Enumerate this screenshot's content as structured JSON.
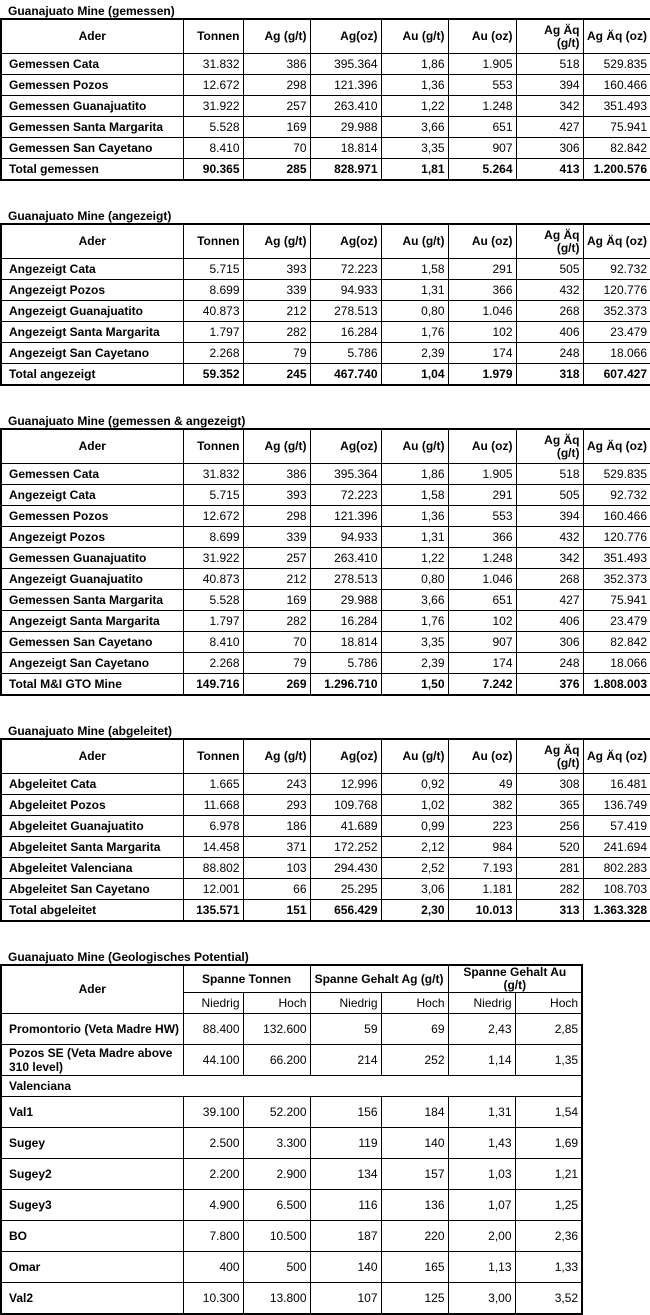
{
  "headers": [
    "Ader",
    "Tonnen",
    "Ag (g/t)",
    "Ag(oz)",
    "Au (g/t)",
    "Au (oz)",
    "Ag Äq (g/t)",
    "Ag Äq (oz)"
  ],
  "tables": [
    {
      "title": "Guanajuato Mine (gemessen)",
      "rows": [
        [
          "Gemessen Cata",
          "31.832",
          "386",
          "395.364",
          "1,86",
          "1.905",
          "518",
          "529.835"
        ],
        [
          "Gemessen Pozos",
          "12.672",
          "298",
          "121.396",
          "1,36",
          "553",
          "394",
          "160.466"
        ],
        [
          "Gemessen Guanajuatito",
          "31.922",
          "257",
          "263.410",
          "1,22",
          "1.248",
          "342",
          "351.493"
        ],
        [
          "Gemessen Santa Margarita",
          "5.528",
          "169",
          "29.988",
          "3,66",
          "651",
          "427",
          "75.941"
        ],
        [
          "Gemessen San Cayetano",
          "8.410",
          "70",
          "18.814",
          "3,35",
          "907",
          "306",
          "82.842"
        ]
      ],
      "total": [
        "Total gemessen",
        "90.365",
        "285",
        "828.971",
        "1,81",
        "5.264",
        "413",
        "1.200.576"
      ]
    },
    {
      "title": "Guanajuato Mine (angezeigt)",
      "rows": [
        [
          "Angezeigt Cata",
          "5.715",
          "393",
          "72.223",
          "1,58",
          "291",
          "505",
          "92.732"
        ],
        [
          "Angezeigt Pozos",
          "8.699",
          "339",
          "94.933",
          "1,31",
          "366",
          "432",
          "120.776"
        ],
        [
          "Angezeigt Guanajuatito",
          "40.873",
          "212",
          "278.513",
          "0,80",
          "1.046",
          "268",
          "352.373"
        ],
        [
          "Angezeigt Santa Margarita",
          "1.797",
          "282",
          "16.284",
          "1,76",
          "102",
          "406",
          "23.479"
        ],
        [
          "Angezeigt San Cayetano",
          "2.268",
          "79",
          "5.786",
          "2,39",
          "174",
          "248",
          "18.066"
        ]
      ],
      "total": [
        "Total angezeigt",
        "59.352",
        "245",
        "467.740",
        "1,04",
        "1.979",
        "318",
        "607.427"
      ]
    },
    {
      "title": "Guanajuato Mine (gemessen & angezeigt)",
      "rows": [
        [
          "Gemessen Cata",
          "31.832",
          "386",
          "395.364",
          "1,86",
          "1.905",
          "518",
          "529.835"
        ],
        [
          "Angezeigt Cata",
          "5.715",
          "393",
          "72.223",
          "1,58",
          "291",
          "505",
          "92.732"
        ],
        [
          "Gemessen Pozos",
          "12.672",
          "298",
          "121.396",
          "1,36",
          "553",
          "394",
          "160.466"
        ],
        [
          "Angezeigt Pozos",
          "8.699",
          "339",
          "94.933",
          "1,31",
          "366",
          "432",
          "120.776"
        ],
        [
          "Gemessen Guanajuatito",
          "31.922",
          "257",
          "263.410",
          "1,22",
          "1.248",
          "342",
          "351.493"
        ],
        [
          "Angezeigt Guanajuatito",
          "40.873",
          "212",
          "278.513",
          "0,80",
          "1.046",
          "268",
          "352.373"
        ],
        [
          "Gemessen Santa Margarita",
          "5.528",
          "169",
          "29.988",
          "3,66",
          "651",
          "427",
          "75.941"
        ],
        [
          "Angezeigt Santa Margarita",
          "1.797",
          "282",
          "16.284",
          "1,76",
          "102",
          "406",
          "23.479"
        ],
        [
          "Gemessen San Cayetano",
          "8.410",
          "70",
          "18.814",
          "3,35",
          "907",
          "306",
          "82.842"
        ],
        [
          "Angezeigt San Cayetano",
          "2.268",
          "79",
          "5.786",
          "2,39",
          "174",
          "248",
          "18.066"
        ]
      ],
      "total": [
        "Total M&I GTO Mine",
        "149.716",
        "269",
        "1.296.710",
        "1,50",
        "7.242",
        "376",
        "1.808.003"
      ]
    },
    {
      "title": "Guanajuato Mine (abgeleitet)",
      "rows": [
        [
          "Abgeleitet Cata",
          "1.665",
          "243",
          "12.996",
          "0,92",
          "49",
          "308",
          "16.481"
        ],
        [
          "Abgeleitet Pozos",
          "11.668",
          "293",
          "109.768",
          "1,02",
          "382",
          "365",
          "136.749"
        ],
        [
          "Abgeleitet Guanajuatito",
          "6.978",
          "186",
          "41.689",
          "0,99",
          "223",
          "256",
          "57.419"
        ],
        [
          "Abgeleitet Santa Margarita",
          "14.458",
          "371",
          "172.252",
          "2,12",
          "984",
          "520",
          "241.694"
        ],
        [
          "Abgeleitet Valenciana",
          "88.802",
          "103",
          "294.430",
          "2,52",
          "7.193",
          "281",
          "802.283"
        ],
        [
          "Abgeleitet San Cayetano",
          "12.001",
          "66",
          "25.295",
          "3,06",
          "1.181",
          "282",
          "108.703"
        ]
      ],
      "total": [
        "Total abgeleitet",
        "135.571",
        "151",
        "656.429",
        "2,30",
        "10.013",
        "313",
        "1.363.328"
      ]
    }
  ],
  "potential": {
    "title": "Guanajuato Mine (Geologisches Potential)",
    "header_ader": "Ader",
    "groups": [
      "Spanne Tonnen",
      "Spanne Gehalt Ag (g/t)",
      "Spanne Gehalt Au (g/t)"
    ],
    "low": "Niedrig",
    "high": "Hoch",
    "rows_top": [
      [
        "Promontorio (Veta Madre HW)",
        "88.400",
        "132.600",
        "59",
        "69",
        "2,43",
        "2,85"
      ],
      [
        "Pozos SE (Veta Madre above 310 level)",
        "44.100",
        "66.200",
        "214",
        "252",
        "1,14",
        "1,35"
      ]
    ],
    "group_label": "Valenciana",
    "rows": [
      [
        "Val1",
        "39.100",
        "52.200",
        "156",
        "184",
        "1,31",
        "1,54"
      ],
      [
        "Sugey",
        "2.500",
        "3.300",
        "119",
        "140",
        "1,43",
        "1,69"
      ],
      [
        "Sugey2",
        "2.200",
        "2.900",
        "134",
        "157",
        "1,03",
        "1,21"
      ],
      [
        "Sugey3",
        "4.900",
        "6.500",
        "116",
        "136",
        "1,07",
        "1,25"
      ],
      [
        "BO",
        "7.800",
        "10.500",
        "187",
        "220",
        "2,00",
        "2,36"
      ],
      [
        "Omar",
        "400",
        "500",
        "140",
        "165",
        "1,13",
        "1,33"
      ],
      [
        "Val2",
        "10.300",
        "13.800",
        "107",
        "125",
        "3,00",
        "3,52"
      ]
    ]
  }
}
